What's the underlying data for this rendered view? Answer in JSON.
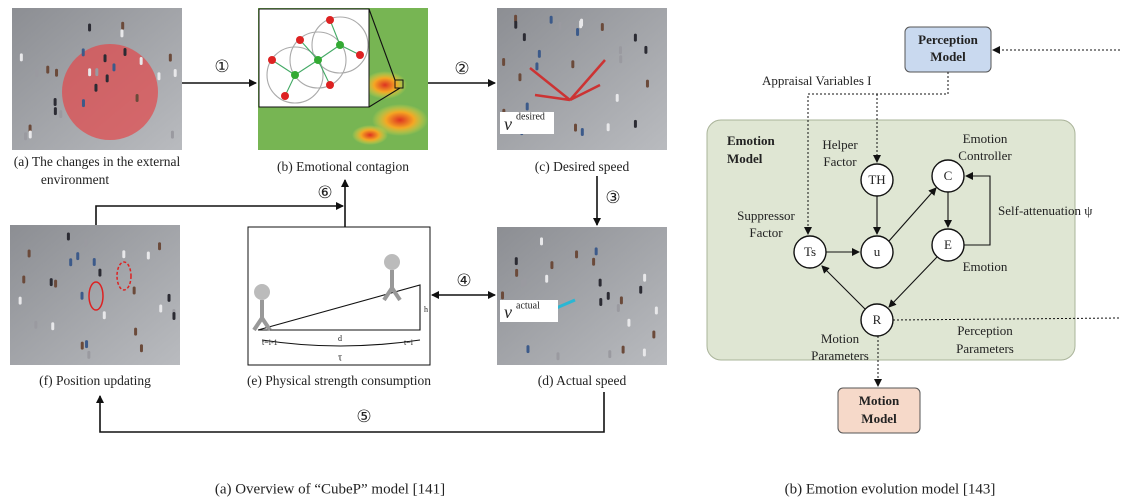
{
  "left": {
    "panels": [
      {
        "caption": [
          "(a) The changes in the external",
          "environment"
        ]
      },
      {
        "caption": [
          "(b) Emotional contagion"
        ]
      },
      {
        "caption": [
          "(c) Desired speed"
        ]
      },
      {
        "caption": [
          "(d) Actual speed"
        ]
      },
      {
        "caption": [
          "(e) Physical strength consumption"
        ]
      },
      {
        "caption": [
          "(f) Position updating"
        ]
      }
    ],
    "steps": [
      "①",
      "②",
      "③",
      "④",
      "⑤",
      "⑥"
    ],
    "desired": {
      "symbol": "v",
      "superscript": "desired"
    },
    "actual": {
      "symbol": "v",
      "superscript": "actual"
    },
    "physical": {
      "start": "t=i-1",
      "end": "t=i",
      "distance": "d",
      "height": "h",
      "period": "τ"
    },
    "subcaption": "(a)  Overview of “CubeP” model [141]"
  },
  "right": {
    "perception_model": [
      "Perception",
      "Model"
    ],
    "appraisal": "Appraisal Variables I",
    "emotion_model": [
      "Emotion",
      "Model"
    ],
    "helper": [
      "Helper",
      "Factor"
    ],
    "controller": [
      "Emotion",
      "Controller"
    ],
    "self_attenuation": "Self-attenuation ψ",
    "suppressor": [
      "Suppressor",
      "Factor"
    ],
    "emotion": "Emotion",
    "motion_parameters": [
      "Motion",
      "Parameters"
    ],
    "perception_parameters": [
      "Perception",
      "Parameters"
    ],
    "motion_model": [
      "Motion",
      "Model"
    ],
    "nodes": {
      "th": "TH",
      "c": "C",
      "ts": "Ts",
      "u": "u",
      "e": "E",
      "r": "R"
    },
    "subcaption": "(b)  Emotion evolution model [143]"
  }
}
